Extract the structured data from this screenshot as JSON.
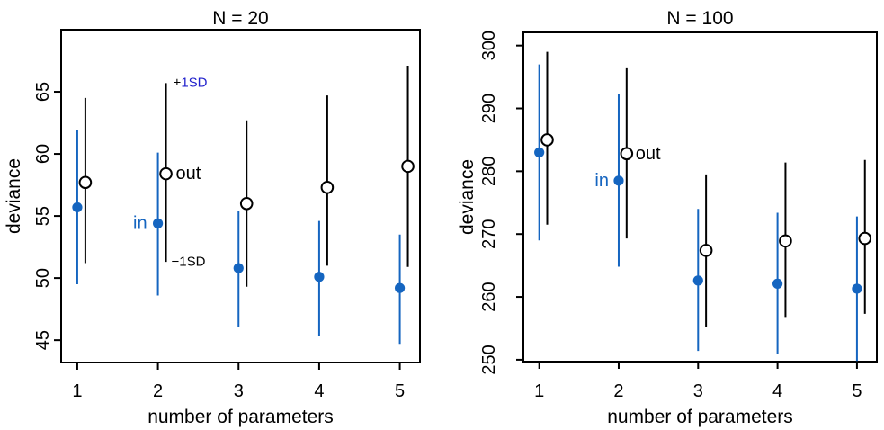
{
  "page": {
    "background": "#ffffff"
  },
  "colors": {
    "in_blue": "#1565C0",
    "out_black": "#000000",
    "sd_label_blue": "#2222CC",
    "axis": "#000000"
  },
  "chart_data": [
    {
      "type": "scatter",
      "title": "N = 20",
      "xlabel": "number of parameters",
      "ylabel": "deviance",
      "x_ticks": [
        1,
        2,
        3,
        4,
        5
      ],
      "y_ticks": [
        45,
        50,
        55,
        60,
        65
      ],
      "xlim": [
        0.8,
        5.25
      ],
      "ylim": [
        43.2,
        70.0
      ],
      "grid": false,
      "legend_position": "none",
      "series": [
        {
          "name": "in",
          "marker": "filled-circle",
          "color": "#1565C0",
          "x_offset": 0,
          "mean": [
            55.7,
            54.4,
            50.8,
            50.1,
            49.2
          ],
          "minus1sd": [
            49.5,
            48.6,
            46.1,
            45.3,
            44.7
          ],
          "plus1sd": [
            61.9,
            60.1,
            55.4,
            54.6,
            53.5
          ]
        },
        {
          "name": "out",
          "marker": "open-circle",
          "color": "#000000",
          "x_offset": 0.1,
          "mean": [
            57.7,
            58.4,
            56.0,
            57.3,
            59.0
          ],
          "minus1sd": [
            51.2,
            51.3,
            49.3,
            51.0,
            50.9
          ],
          "plus1sd": [
            64.5,
            65.7,
            62.7,
            64.7,
            67.1
          ]
        }
      ],
      "annotations": [
        {
          "name": "plus-1sd-label",
          "x": 2.1,
          "y": 65.75,
          "dx": 8,
          "anchor": "start",
          "size": 15,
          "parts": [
            {
              "text": "+",
              "color": "#000000"
            },
            {
              "text": "1SD",
              "color": "#2222CC"
            }
          ]
        },
        {
          "name": "minus-1sd-label",
          "x": 2.1,
          "y": 51.35,
          "dx": 6,
          "anchor": "start",
          "size": 15,
          "parts": [
            {
              "text": "−1SD",
              "color": "#000000"
            }
          ]
        },
        {
          "name": "in-label",
          "x": 2.0,
          "y": 54.4,
          "dx": -12,
          "anchor": "end",
          "size": 20,
          "parts": [
            {
              "text": "in",
              "color": "#1565C0"
            }
          ]
        },
        {
          "name": "out-label",
          "x": 2.1,
          "y": 58.4,
          "dx": 11,
          "anchor": "start",
          "size": 20,
          "parts": [
            {
              "text": "out",
              "color": "#000000"
            }
          ]
        }
      ]
    },
    {
      "type": "scatter",
      "title": "N = 100",
      "xlabel": "number of parameters",
      "ylabel": "deviance",
      "x_ticks": [
        1,
        2,
        3,
        4,
        5
      ],
      "y_ticks": [
        250,
        260,
        270,
        280,
        290,
        300
      ],
      "xlim": [
        0.8,
        5.25
      ],
      "ylim": [
        249.7,
        302.1
      ],
      "grid": false,
      "legend_position": "none",
      "series": [
        {
          "name": "in",
          "marker": "filled-circle",
          "color": "#1565C0",
          "x_offset": 0,
          "mean": [
            283.0,
            278.5,
            262.6,
            262.1,
            261.3
          ],
          "minus1sd": [
            269.0,
            264.8,
            251.4,
            250.9,
            249.8
          ],
          "plus1sd": [
            297.0,
            292.3,
            274.0,
            273.4,
            272.8
          ]
        },
        {
          "name": "out",
          "marker": "open-circle",
          "color": "#000000",
          "x_offset": 0.1,
          "mean": [
            285.0,
            282.8,
            267.4,
            268.9,
            269.3
          ],
          "minus1sd": [
            271.5,
            269.3,
            255.2,
            256.8,
            257.3
          ],
          "plus1sd": [
            299.0,
            296.4,
            279.5,
            281.4,
            281.8
          ]
        }
      ],
      "annotations": [
        {
          "name": "in-label",
          "x": 2.0,
          "y": 278.5,
          "dx": -11,
          "anchor": "end",
          "size": 20,
          "parts": [
            {
              "text": "in",
              "color": "#1565C0"
            }
          ]
        },
        {
          "name": "out-label",
          "x": 2.1,
          "y": 282.8,
          "dx": 10,
          "anchor": "start",
          "size": 20,
          "parts": [
            {
              "text": "out",
              "color": "#000000"
            }
          ]
        }
      ]
    }
  ]
}
